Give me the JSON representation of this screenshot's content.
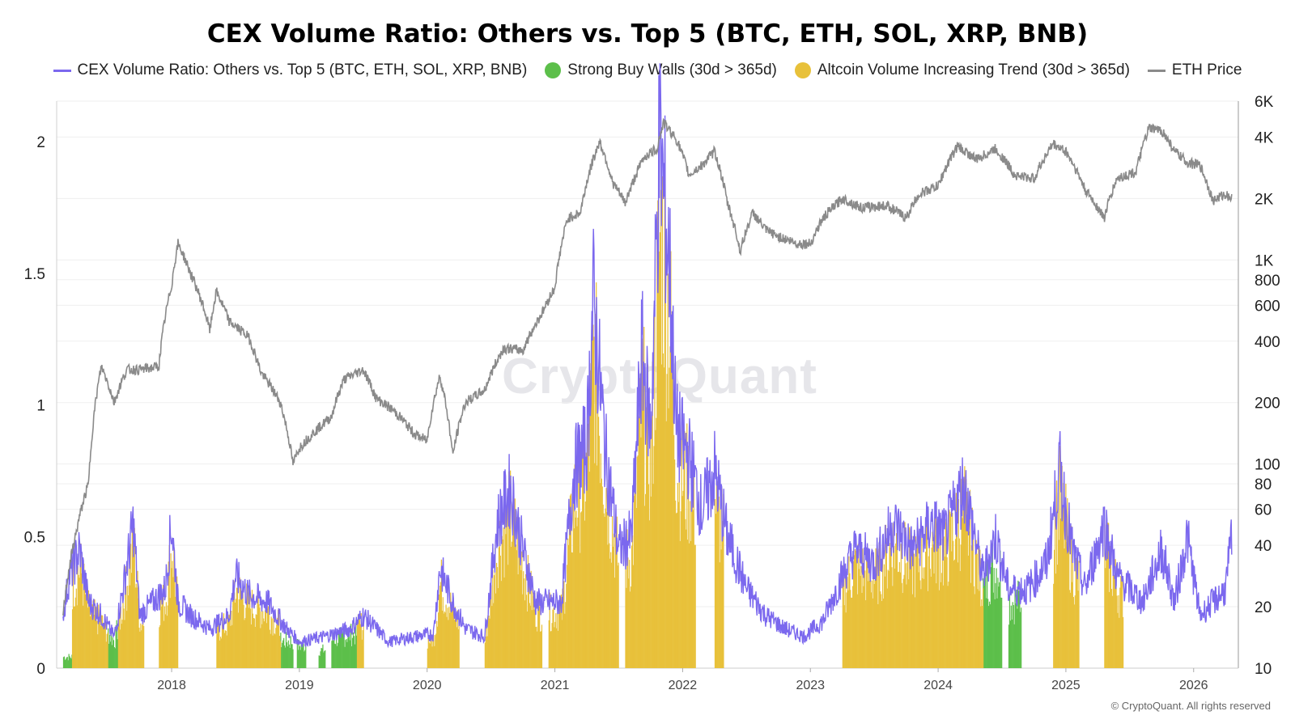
{
  "chart_data": {
    "type": "bar",
    "title": "CEX Volume Ratio: Others vs. Top 5 (BTC, ETH, SOL, XRP, BNB)",
    "watermark": "CryptoQuant",
    "copyright": "© CryptoQuant. All rights reserved",
    "legend": {
      "placement": "top-center",
      "items": [
        {
          "label": "CEX Volume Ratio: Others vs. Top 5 (BTC, ETH, SOL, XRP, BNB)",
          "kind": "line",
          "color": "#7b68ee"
        },
        {
          "label": "Strong Buy Walls (30d > 365d)",
          "kind": "dot",
          "color": "#5cbf4a"
        },
        {
          "label": "Altcoin Volume Increasing Trend (30d > 365d)",
          "kind": "dot",
          "color": "#e8c13a"
        },
        {
          "label": "ETH Price",
          "kind": "line",
          "color": "#8a8a8a"
        }
      ]
    },
    "x_axis": {
      "ticks": [
        "2018",
        "2019",
        "2020",
        "2021",
        "2022",
        "2023",
        "2024",
        "2025",
        "2026"
      ],
      "range": [
        2017.1,
        2026.35
      ]
    },
    "y_left": {
      "ticks": [
        "0",
        "0.5",
        "1",
        "1.5",
        "2"
      ],
      "range": [
        0,
        2.2
      ]
    },
    "y_right": {
      "scale": "log",
      "ticks": [
        {
          "v": 10,
          "label": "10"
        },
        {
          "v": 20,
          "label": "20"
        },
        {
          "v": 40,
          "label": "40"
        },
        {
          "v": 60,
          "label": "60"
        },
        {
          "v": 80,
          "label": "80"
        },
        {
          "v": 100,
          "label": "100"
        },
        {
          "v": 200,
          "label": "200"
        },
        {
          "v": 400,
          "label": "400"
        },
        {
          "v": 600,
          "label": "600"
        },
        {
          "v": 800,
          "label": "800"
        },
        {
          "v": 1000,
          "label": "1K"
        },
        {
          "v": 2000,
          "label": "2K"
        },
        {
          "v": 4000,
          "label": "4K"
        },
        {
          "v": 6000,
          "label": "6K"
        }
      ],
      "range": [
        10,
        6000
      ]
    },
    "grid": true,
    "series": [
      {
        "name": "ETH Price",
        "axis": "right",
        "color": "#8a8a8a",
        "points": [
          [
            2017.15,
            18
          ],
          [
            2017.25,
            45
          ],
          [
            2017.35,
            80
          ],
          [
            2017.45,
            300
          ],
          [
            2017.55,
            200
          ],
          [
            2017.65,
            290
          ],
          [
            2017.75,
            290
          ],
          [
            2017.9,
            300
          ],
          [
            2018.0,
            750
          ],
          [
            2018.05,
            1200
          ],
          [
            2018.15,
            850
          ],
          [
            2018.3,
            450
          ],
          [
            2018.35,
            700
          ],
          [
            2018.45,
            500
          ],
          [
            2018.6,
            420
          ],
          [
            2018.7,
            280
          ],
          [
            2018.85,
            200
          ],
          [
            2018.95,
            100
          ],
          [
            2019.0,
            120
          ],
          [
            2019.1,
            140
          ],
          [
            2019.25,
            170
          ],
          [
            2019.35,
            260
          ],
          [
            2019.5,
            290
          ],
          [
            2019.6,
            210
          ],
          [
            2019.75,
            180
          ],
          [
            2019.9,
            140
          ],
          [
            2020.0,
            130
          ],
          [
            2020.1,
            270
          ],
          [
            2020.2,
            110
          ],
          [
            2020.3,
            200
          ],
          [
            2020.45,
            230
          ],
          [
            2020.6,
            370
          ],
          [
            2020.75,
            360
          ],
          [
            2020.9,
            550
          ],
          [
            2021.0,
            730
          ],
          [
            2021.1,
            1600
          ],
          [
            2021.2,
            1700
          ],
          [
            2021.35,
            3800
          ],
          [
            2021.45,
            2400
          ],
          [
            2021.55,
            1900
          ],
          [
            2021.6,
            2300
          ],
          [
            2021.7,
            3200
          ],
          [
            2021.8,
            3500
          ],
          [
            2021.85,
            4700
          ],
          [
            2021.95,
            3900
          ],
          [
            2022.05,
            2600
          ],
          [
            2022.15,
            2900
          ],
          [
            2022.25,
            3400
          ],
          [
            2022.35,
            1900
          ],
          [
            2022.45,
            1100
          ],
          [
            2022.55,
            1700
          ],
          [
            2022.65,
            1400
          ],
          [
            2022.75,
            1300
          ],
          [
            2022.9,
            1200
          ],
          [
            2023.0,
            1200
          ],
          [
            2023.1,
            1600
          ],
          [
            2023.25,
            2000
          ],
          [
            2023.4,
            1800
          ],
          [
            2023.6,
            1850
          ],
          [
            2023.75,
            1600
          ],
          [
            2023.85,
            2100
          ],
          [
            2024.0,
            2300
          ],
          [
            2024.15,
            3600
          ],
          [
            2024.3,
            3100
          ],
          [
            2024.45,
            3500
          ],
          [
            2024.6,
            2600
          ],
          [
            2024.75,
            2500
          ],
          [
            2024.9,
            3700
          ],
          [
            2025.0,
            3400
          ],
          [
            2025.15,
            2200
          ],
          [
            2025.3,
            1600
          ],
          [
            2025.4,
            2500
          ],
          [
            2025.55,
            2700
          ],
          [
            2025.65,
            4400
          ],
          [
            2025.75,
            4300
          ],
          [
            2025.85,
            3400
          ],
          [
            2025.95,
            3000
          ],
          [
            2026.05,
            2900
          ],
          [
            2026.15,
            1950
          ],
          [
            2026.25,
            2100
          ],
          [
            2026.3,
            2000
          ]
        ]
      },
      {
        "name": "CEX Volume Ratio: Others vs. Top 5 (BTC, ETH, SOL, XRP, BNB)",
        "axis": "left",
        "color": "#7b68ee",
        "points": [
          [
            2017.15,
            0.2
          ],
          [
            2017.2,
            0.35
          ],
          [
            2017.28,
            0.45
          ],
          [
            2017.35,
            0.25
          ],
          [
            2017.45,
            0.2
          ],
          [
            2017.55,
            0.12
          ],
          [
            2017.62,
            0.3
          ],
          [
            2017.7,
            0.55
          ],
          [
            2017.75,
            0.2
          ],
          [
            2017.85,
            0.25
          ],
          [
            2017.95,
            0.3
          ],
          [
            2018.0,
            0.55
          ],
          [
            2018.05,
            0.25
          ],
          [
            2018.15,
            0.2
          ],
          [
            2018.3,
            0.15
          ],
          [
            2018.45,
            0.2
          ],
          [
            2018.5,
            0.35
          ],
          [
            2018.6,
            0.28
          ],
          [
            2018.75,
            0.25
          ],
          [
            2018.9,
            0.15
          ],
          [
            2019.0,
            0.1
          ],
          [
            2019.2,
            0.12
          ],
          [
            2019.4,
            0.15
          ],
          [
            2019.5,
            0.2
          ],
          [
            2019.7,
            0.1
          ],
          [
            2019.9,
            0.12
          ],
          [
            2020.05,
            0.13
          ],
          [
            2020.1,
            0.38
          ],
          [
            2020.2,
            0.25
          ],
          [
            2020.3,
            0.15
          ],
          [
            2020.45,
            0.12
          ],
          [
            2020.55,
            0.55
          ],
          [
            2020.65,
            0.68
          ],
          [
            2020.75,
            0.45
          ],
          [
            2020.85,
            0.25
          ],
          [
            2021.05,
            0.25
          ],
          [
            2021.15,
            0.75
          ],
          [
            2021.25,
            0.85
          ],
          [
            2021.3,
            1.4
          ],
          [
            2021.4,
            0.8
          ],
          [
            2021.5,
            0.45
          ],
          [
            2021.6,
            0.5
          ],
          [
            2021.68,
            1.2
          ],
          [
            2021.75,
            0.9
          ],
          [
            2021.82,
            2.0
          ],
          [
            2021.9,
            1.5
          ],
          [
            2021.95,
            0.9
          ],
          [
            2022.05,
            0.8
          ],
          [
            2022.15,
            0.6
          ],
          [
            2022.25,
            0.75
          ],
          [
            2022.35,
            0.5
          ],
          [
            2022.5,
            0.3
          ],
          [
            2022.65,
            0.2
          ],
          [
            2022.8,
            0.15
          ],
          [
            2022.95,
            0.12
          ],
          [
            2023.1,
            0.18
          ],
          [
            2023.25,
            0.35
          ],
          [
            2023.35,
            0.45
          ],
          [
            2023.5,
            0.4
          ],
          [
            2023.65,
            0.55
          ],
          [
            2023.8,
            0.45
          ],
          [
            2023.95,
            0.55
          ],
          [
            2024.05,
            0.5
          ],
          [
            2024.2,
            0.7
          ],
          [
            2024.35,
            0.35
          ],
          [
            2024.45,
            0.5
          ],
          [
            2024.55,
            0.3
          ],
          [
            2024.7,
            0.3
          ],
          [
            2024.85,
            0.4
          ],
          [
            2024.95,
            0.75
          ],
          [
            2025.05,
            0.45
          ],
          [
            2025.15,
            0.3
          ],
          [
            2025.3,
            0.55
          ],
          [
            2025.4,
            0.35
          ],
          [
            2025.5,
            0.3
          ],
          [
            2025.6,
            0.25
          ],
          [
            2025.75,
            0.45
          ],
          [
            2025.85,
            0.25
          ],
          [
            2025.95,
            0.5
          ],
          [
            2026.05,
            0.2
          ],
          [
            2026.15,
            0.25
          ],
          [
            2026.25,
            0.3
          ],
          [
            2026.3,
            0.5
          ]
        ]
      },
      {
        "name": "Strong Buy Walls (30d > 365d)",
        "axis": "left",
        "color": "#5cbf4a",
        "intervals": [
          [
            2017.15,
            2017.22,
            0.05
          ],
          [
            2017.5,
            2017.58,
            0.2
          ],
          [
            2018.85,
            2018.95,
            0.12
          ],
          [
            2018.98,
            2019.05,
            0.1
          ],
          [
            2019.15,
            2019.2,
            0.08
          ],
          [
            2019.25,
            2019.5,
            0.15
          ],
          [
            2024.35,
            2024.5,
            0.45
          ],
          [
            2024.55,
            2024.65,
            0.3
          ]
        ]
      },
      {
        "name": "Altcoin Volume Increasing Trend (30d > 365d)",
        "axis": "left",
        "color": "#e8c13a",
        "intervals": [
          [
            2017.22,
            2017.5,
            0.55
          ],
          [
            2017.58,
            2017.78,
            0.65
          ],
          [
            2017.9,
            2018.05,
            0.7
          ],
          [
            2018.35,
            2018.85,
            0.35
          ],
          [
            2019.45,
            2019.5,
            0.2
          ],
          [
            2020.0,
            2020.25,
            0.4
          ],
          [
            2020.45,
            2020.9,
            0.95
          ],
          [
            2020.95,
            2021.05,
            0.85
          ],
          [
            2021.05,
            2021.5,
            1.4
          ],
          [
            2021.55,
            2022.1,
            1.9
          ],
          [
            2022.25,
            2022.32,
            1.1
          ],
          [
            2023.25,
            2024.35,
            0.9
          ],
          [
            2024.9,
            2025.1,
            0.85
          ],
          [
            2025.3,
            2025.45,
            0.75
          ]
        ]
      }
    ]
  }
}
